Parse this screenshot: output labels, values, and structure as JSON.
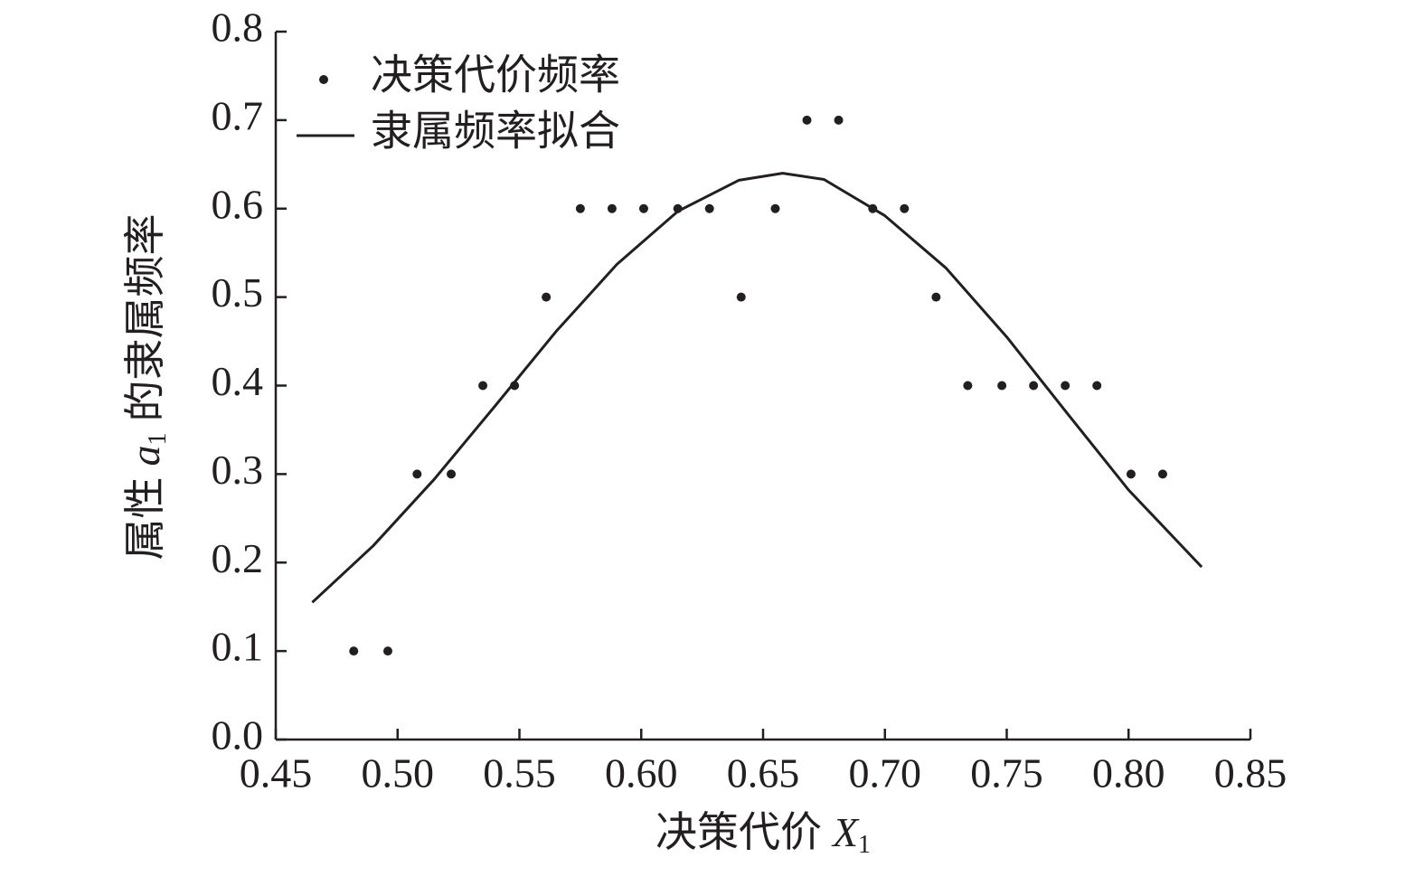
{
  "chart_data": [
    {
      "type": "scatter",
      "name": "决策代价频率",
      "color": "#231f20",
      "x": [
        0.482,
        0.496,
        0.508,
        0.522,
        0.535,
        0.548,
        0.561,
        0.575,
        0.588,
        0.601,
        0.615,
        0.628,
        0.641,
        0.655,
        0.668,
        0.681,
        0.695,
        0.708,
        0.721,
        0.734,
        0.748,
        0.761,
        0.774,
        0.787,
        0.801,
        0.814
      ],
      "values": [
        0.1,
        0.1,
        0.3,
        0.3,
        0.4,
        0.4,
        0.5,
        0.6,
        0.6,
        0.6,
        0.6,
        0.6,
        0.5,
        0.6,
        0.7,
        0.7,
        0.6,
        0.6,
        0.5,
        0.4,
        0.4,
        0.4,
        0.4,
        0.4,
        0.3,
        0.3
      ]
    },
    {
      "type": "line",
      "name": "隶属频率拟合",
      "color": "#231f20",
      "x": [
        0.465,
        0.49,
        0.515,
        0.54,
        0.565,
        0.59,
        0.615,
        0.64,
        0.658,
        0.675,
        0.7,
        0.725,
        0.75,
        0.775,
        0.8,
        0.83
      ],
      "values": [
        0.155,
        0.219,
        0.294,
        0.377,
        0.461,
        0.537,
        0.597,
        0.632,
        0.64,
        0.633,
        0.592,
        0.533,
        0.455,
        0.368,
        0.282,
        0.195
      ]
    },
    {
      "type": "axes",
      "x_label": {
        "text": "决策代价",
        "var": "X",
        "sub": "1"
      },
      "y_label": {
        "text": "属性",
        "var": "a",
        "sub": "1",
        "rest": "的隶属频率"
      },
      "xlim": [
        0.45,
        0.85
      ],
      "xticks": [
        0.45,
        {
          "value": 0.5,
          "label": "0.50"
        },
        0.55,
        {
          "value": 0.6,
          "label": "0.60"
        },
        0.65,
        {
          "value": 0.7,
          "label": "0.70"
        },
        0.75,
        {
          "value": 0.8,
          "label": "0.80"
        },
        0.85
      ],
      "ylim": [
        0,
        0.8
      ],
      "yticks": [
        {
          "value": 0,
          "label": "0.0"
        },
        0.1,
        0.2,
        0.3,
        0.4,
        0.5,
        0.6,
        0.7,
        0.8
      ],
      "legend": "upper left"
    }
  ]
}
